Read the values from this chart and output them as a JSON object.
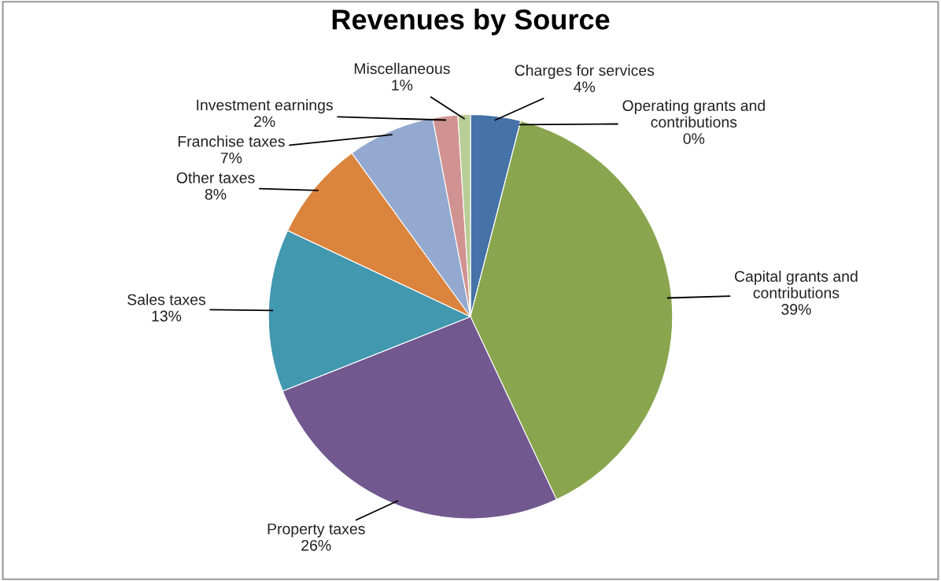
{
  "chart_data": {
    "type": "pie",
    "title": "Revenues by Source",
    "categories": [
      "Charges for services",
      "Operating grants and contributions",
      "Capital grants and contributions",
      "Property taxes",
      "Sales taxes",
      "Other taxes",
      "Franchise taxes",
      "Investment earnings",
      "Miscellaneous"
    ],
    "values": [
      4,
      0,
      39,
      26,
      13,
      8,
      7,
      2,
      1
    ],
    "value_labels": [
      "4%",
      "0%",
      "39%",
      "26%",
      "13%",
      "8%",
      "7%",
      "2%",
      "1%"
    ],
    "colors": [
      "#4572a7",
      "#aa4643",
      "#89a54e",
      "#71588f",
      "#4198af",
      "#db843d",
      "#93a9cf",
      "#d19392",
      "#b9cd96"
    ],
    "legend": false
  }
}
